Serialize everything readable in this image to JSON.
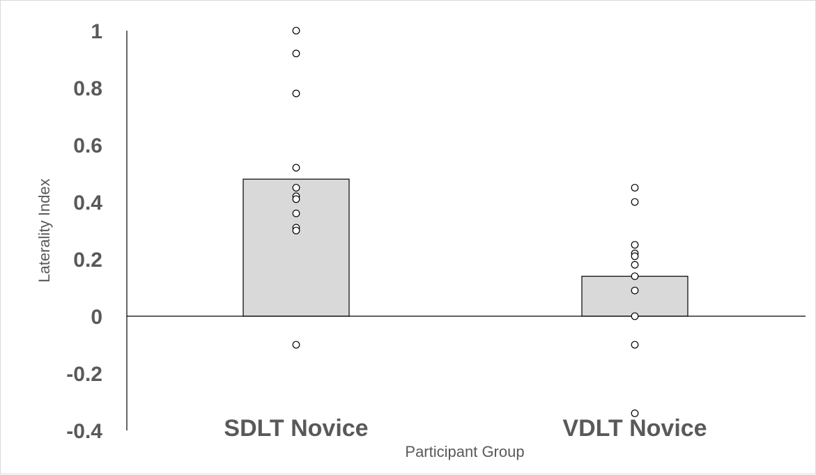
{
  "chart_data": {
    "type": "bar",
    "title": "",
    "xlabel": "Participant Group",
    "ylabel": "Laterality Index",
    "ylim": [
      -0.4,
      1
    ],
    "yticks": [
      1,
      0.8,
      0.6,
      0.4,
      0.2,
      0,
      -0.2,
      -0.4
    ],
    "ytick_labels": [
      "1",
      "0.8",
      "0.6",
      "0.4",
      "0.2",
      "0",
      "-0.2",
      "-0.4"
    ],
    "categories": [
      "SDLT Novice",
      "VDLT Novice"
    ],
    "values": [
      0.48,
      0.14
    ],
    "bar_color": "#d9d9d9",
    "bar_edge_color": "#000000",
    "points": [
      [
        1.0,
        0.92,
        0.78,
        0.52,
        0.45,
        0.42,
        0.41,
        0.36,
        0.31,
        0.3,
        -0.1
      ],
      [
        0.45,
        0.4,
        0.25,
        0.22,
        0.21,
        0.18,
        0.14,
        0.09,
        0.0,
        -0.1,
        -0.34
      ]
    ],
    "point_style": "hollow-circle",
    "grid": false,
    "legend": "none"
  }
}
